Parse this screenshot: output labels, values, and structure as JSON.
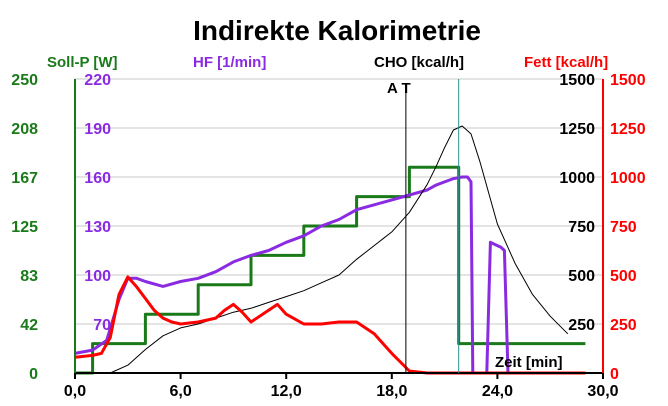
{
  "chart_data": {
    "type": "line",
    "title": "Indirekte Kalorimetrie",
    "xlabel": "Zeit [min]",
    "xlim": [
      0,
      30
    ],
    "x_ticks": [
      "0,0",
      "6,0",
      "12,0",
      "18,0",
      "24,0",
      "30,0"
    ],
    "markers": {
      "at_label": "A T",
      "at_x": 18.8
    },
    "axes": {
      "soll_p": {
        "label": "Soll-P [W]",
        "color": "#1a7a1a",
        "range": [
          0,
          250
        ],
        "ticks": [
          "0",
          "42",
          "83",
          "125",
          "167",
          "208",
          "250"
        ]
      },
      "hf": {
        "label": "HF [1/min]",
        "color": "#8a2be2",
        "range": [
          40,
          220
        ],
        "ticks": [
          "70",
          "100",
          "130",
          "160",
          "190",
          "220"
        ]
      },
      "cho": {
        "label": "CHO [kcal/h]",
        "color": "#000000",
        "range": [
          0,
          1500
        ],
        "ticks": [
          "0",
          "250",
          "500",
          "750",
          "1000",
          "1250",
          "1500"
        ]
      },
      "fett": {
        "label": "Fett [kcal/h]",
        "color": "#ff0000",
        "range": [
          0,
          1500
        ],
        "ticks": [
          "0",
          "250",
          "500",
          "750",
          "1000",
          "1250",
          "1500"
        ]
      }
    },
    "series": [
      {
        "name": "Soll-P [W]",
        "axis": "soll_p",
        "color": "#1a7a1a",
        "x": [
          0,
          1,
          1,
          4,
          4,
          7,
          7,
          10,
          10,
          13,
          13,
          16,
          16,
          19,
          19,
          21.8,
          21.8,
          29
        ],
        "y": [
          0,
          0,
          25,
          25,
          50,
          50,
          75,
          75,
          100,
          100,
          125,
          125,
          150,
          150,
          175,
          175,
          25,
          25
        ]
      },
      {
        "name": "HF [1/min]",
        "axis": "hf",
        "color": "#8a2be2",
        "x": [
          0,
          1,
          1.8,
          2.5,
          3,
          3.5,
          4,
          5,
          6,
          7,
          8,
          9,
          10,
          11,
          12,
          13,
          14,
          15,
          16,
          17,
          18,
          19,
          20,
          20.5,
          21,
          21.5,
          22,
          22.3,
          22.5,
          22.6,
          23.4,
          23.6,
          23.8,
          24.2,
          24.4,
          24.6
        ],
        "y": [
          52,
          54,
          60,
          85,
          98,
          98,
          96,
          93,
          96,
          98,
          102,
          108,
          112,
          115,
          120,
          124,
          130,
          134,
          140,
          143,
          146,
          149,
          152,
          155,
          157,
          159,
          160,
          160,
          157,
          40,
          40,
          120,
          119,
          117,
          115,
          40
        ]
      },
      {
        "name": "CHO [kcal/h]",
        "axis": "cho",
        "color": "#000000",
        "x": [
          0,
          2,
          3,
          4,
          5,
          6,
          7,
          8,
          9,
          10,
          11,
          12,
          13,
          14,
          15,
          16,
          17,
          18,
          19,
          20,
          20.5,
          21,
          21.5,
          22,
          22.5,
          23,
          24,
          25,
          26,
          27,
          28
        ],
        "y": [
          0,
          0,
          40,
          120,
          190,
          230,
          250,
          280,
          310,
          330,
          360,
          390,
          420,
          460,
          500,
          580,
          650,
          720,
          820,
          960,
          1050,
          1150,
          1240,
          1260,
          1220,
          1080,
          760,
          560,
          400,
          290,
          200
        ]
      },
      {
        "name": "Fett [kcal/h]",
        "axis": "fett",
        "color": "#ff0000",
        "x": [
          0,
          1,
          1.5,
          2,
          2.5,
          3,
          3.5,
          4,
          4.5,
          5,
          5.5,
          6,
          7,
          8,
          8.5,
          9,
          9.5,
          10,
          11,
          11.5,
          12,
          13,
          14,
          15,
          16,
          16.5,
          17,
          18,
          19,
          20,
          21,
          22,
          23,
          24,
          25,
          26,
          27,
          28,
          29
        ],
        "y": [
          80,
          90,
          100,
          180,
          400,
          490,
          440,
          380,
          320,
          280,
          260,
          250,
          260,
          280,
          320,
          350,
          310,
          260,
          320,
          350,
          300,
          250,
          250,
          260,
          260,
          230,
          200,
          100,
          10,
          0,
          0,
          0,
          0,
          0,
          0,
          0,
          0,
          0,
          0
        ]
      }
    ]
  }
}
